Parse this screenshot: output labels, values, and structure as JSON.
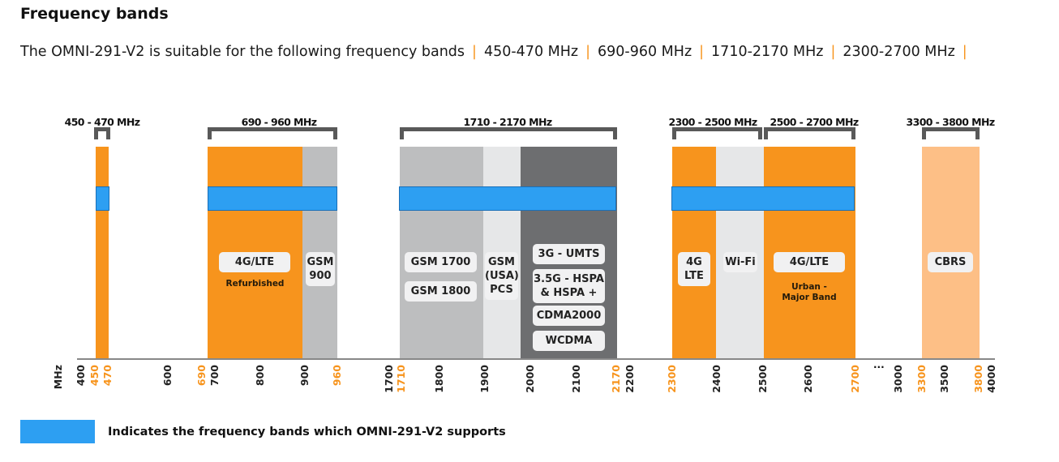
{
  "title": "Frequency bands",
  "description": {
    "text": "The OMNI-291-V2 is suitable for the following frequency bands",
    "separator": "|",
    "bands": [
      "450-470 MHz",
      "690-960 MHz",
      "1710-2170 MHz",
      "2300-2700 MHz"
    ]
  },
  "colors": {
    "orange": "#f7941d",
    "light_orange": "#fdbf86",
    "gray": "#bdbebf",
    "light_gray": "#e6e7e8",
    "dark_gray": "#6d6e70",
    "supported_blue": "#2d9ff2"
  },
  "brackets": [
    "450 - 470 MHz",
    "690 - 960 MHz",
    "1710 - 2170 MHz",
    "2300 - 2500 MHz",
    "2500 - 2700 MHz",
    "3300 - 3800 MHz"
  ],
  "labels": {
    "lte_refurb": "4G/LTE",
    "refurbished": "Refurbished",
    "gsm900": "GSM 900",
    "gsm1700": "GSM 1700",
    "gsm1800": "GSM 1800",
    "gsm_pcs": "GSM (USA) PCS",
    "umts": "3G - UMTS",
    "hspa": "3.5G - HSPA & HSPA +",
    "cdma": "CDMA2000",
    "wcdma": "WCDMA",
    "lte_2300": "4G LTE",
    "wifi": "Wi-Fi",
    "lte_urban": "4G/LTE",
    "urban": "Urban - Major Band",
    "cbrs": "CBRS"
  },
  "axis": {
    "unit": "MHz",
    "break": "...",
    "ticks": [
      {
        "label": "400",
        "hl": false
      },
      {
        "label": "450",
        "hl": true
      },
      {
        "label": "470",
        "hl": true
      },
      {
        "label": "600",
        "hl": false
      },
      {
        "label": "690",
        "hl": true
      },
      {
        "label": "700",
        "hl": false
      },
      {
        "label": "800",
        "hl": false
      },
      {
        "label": "900",
        "hl": false
      },
      {
        "label": "960",
        "hl": true
      },
      {
        "label": "1700",
        "hl": false
      },
      {
        "label": "1710",
        "hl": true
      },
      {
        "label": "1800",
        "hl": false
      },
      {
        "label": "1900",
        "hl": false
      },
      {
        "label": "2000",
        "hl": false
      },
      {
        "label": "2100",
        "hl": false
      },
      {
        "label": "2170",
        "hl": true
      },
      {
        "label": "2200",
        "hl": false
      },
      {
        "label": "2300",
        "hl": true
      },
      {
        "label": "2400",
        "hl": false
      },
      {
        "label": "2500",
        "hl": false
      },
      {
        "label": "2600",
        "hl": false
      },
      {
        "label": "2700",
        "hl": true
      },
      {
        "label": "3000",
        "hl": false
      },
      {
        "label": "3300",
        "hl": true
      },
      {
        "label": "3500",
        "hl": false
      },
      {
        "label": "3800",
        "hl": true
      },
      {
        "label": "4000",
        "hl": false
      }
    ]
  },
  "legend": {
    "text": "Indicates the frequency bands which OMNI-291-V2 supports"
  }
}
